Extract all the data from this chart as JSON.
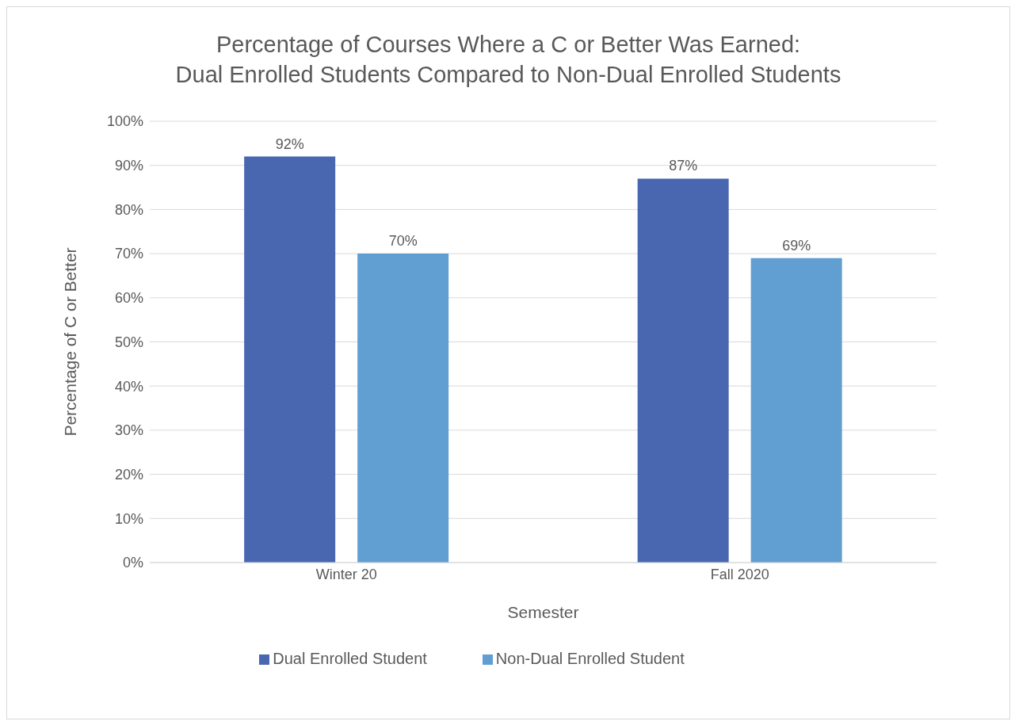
{
  "chart_data": {
    "type": "bar",
    "title": "Percentage of Courses Where a C or Better Was Earned:\nDual Enrolled Students Compared to Non-Dual Enrolled Students",
    "xlabel": "Semester",
    "ylabel": "Percentage of C or Better",
    "categories": [
      "Winter 20",
      "Fall 2020"
    ],
    "series": [
      {
        "name": "Dual Enrolled Student",
        "color": "#4967b0",
        "values": [
          92,
          87
        ],
        "value_labels": [
          "92%",
          "87%"
        ]
      },
      {
        "name": "Non-Dual Enrolled Student",
        "color": "#619fd3",
        "values": [
          70,
          69
        ],
        "value_labels": [
          "70%",
          "69%"
        ]
      }
    ],
    "ylim": [
      0,
      100
    ],
    "yticks": [
      {
        "value": 0,
        "label": "0%"
      },
      {
        "value": 10,
        "label": "10%"
      },
      {
        "value": 20,
        "label": "20%"
      },
      {
        "value": 30,
        "label": "30%"
      },
      {
        "value": 40,
        "label": "40%"
      },
      {
        "value": 50,
        "label": "50%"
      },
      {
        "value": 60,
        "label": "60%"
      },
      {
        "value": 70,
        "label": "70%"
      },
      {
        "value": 80,
        "label": "80%"
      },
      {
        "value": 90,
        "label": "90%"
      },
      {
        "value": 100,
        "label": "100%"
      }
    ],
    "grid": "y",
    "legend": "bottom"
  }
}
